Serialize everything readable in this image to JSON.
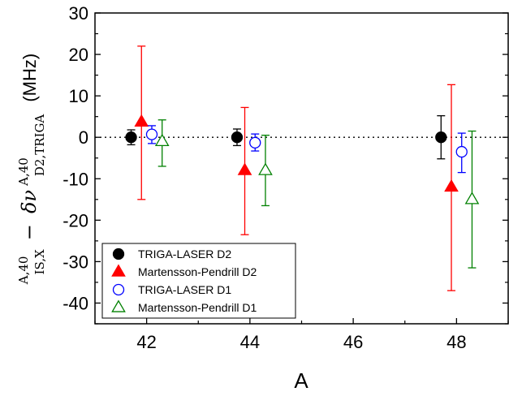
{
  "chart_data": {
    "type": "scatter",
    "xlabel": "A",
    "ylabel": {
      "main": "δν",
      "sub_left": "IS,X",
      "sup_left": "A,40",
      "minus": "−",
      "sub_right": "D2,TRIGA",
      "sup_right": "A,40",
      "units": "(MHz)"
    },
    "xlim": [
      41,
      49
    ],
    "ylim": [
      -45,
      30
    ],
    "xticks": [
      42,
      44,
      46,
      48
    ],
    "yticks": [
      30,
      20,
      10,
      0,
      -10,
      -20,
      -30,
      -40
    ],
    "x_tick_labels": [
      "42",
      "44",
      "46",
      "48"
    ],
    "y_tick_labels": [
      "30",
      "20",
      "10",
      "0",
      "-10",
      "-20",
      "-30",
      "-40"
    ],
    "reference_line": 0,
    "legend_position": "bottom-left",
    "series": [
      {
        "name": "TRIGA-LASER D2",
        "marker": "circle",
        "filled": true,
        "color": "#000000",
        "points": [
          {
            "x": 41.7,
            "y": 0.0,
            "ylow": -1.8,
            "yhigh": 1.8
          },
          {
            "x": 43.75,
            "y": 0.0,
            "ylow": -2.0,
            "yhigh": 2.0
          },
          {
            "x": 47.7,
            "y": 0.0,
            "ylow": -5.2,
            "yhigh": 5.2
          }
        ]
      },
      {
        "name": "Martensson-Pendrill D2",
        "marker": "triangle",
        "filled": true,
        "color": "#ff0000",
        "points": [
          {
            "x": 41.9,
            "y": 3.7,
            "ylow": -15.0,
            "yhigh": 22.0
          },
          {
            "x": 43.9,
            "y": -8.0,
            "ylow": -23.5,
            "yhigh": 7.2
          },
          {
            "x": 47.9,
            "y": -12.0,
            "ylow": -37.0,
            "yhigh": 12.7
          }
        ]
      },
      {
        "name": "TRIGA-LASER D1",
        "marker": "circle",
        "filled": false,
        "color": "#0000ff",
        "points": [
          {
            "x": 42.1,
            "y": 0.7,
            "ylow": -1.5,
            "yhigh": 2.8
          },
          {
            "x": 44.1,
            "y": -1.3,
            "ylow": -3.3,
            "yhigh": 0.8
          },
          {
            "x": 48.1,
            "y": -3.5,
            "ylow": -8.5,
            "yhigh": 1.0
          }
        ]
      },
      {
        "name": "Martensson-Pendrill D1",
        "marker": "triangle",
        "filled": false,
        "color": "#008000",
        "points": [
          {
            "x": 42.3,
            "y": -1.0,
            "ylow": -7.0,
            "yhigh": 4.2
          },
          {
            "x": 44.3,
            "y": -8.0,
            "ylow": -16.5,
            "yhigh": 0.5
          },
          {
            "x": 48.3,
            "y": -15.0,
            "ylow": -31.5,
            "yhigh": 1.5
          }
        ]
      }
    ]
  }
}
